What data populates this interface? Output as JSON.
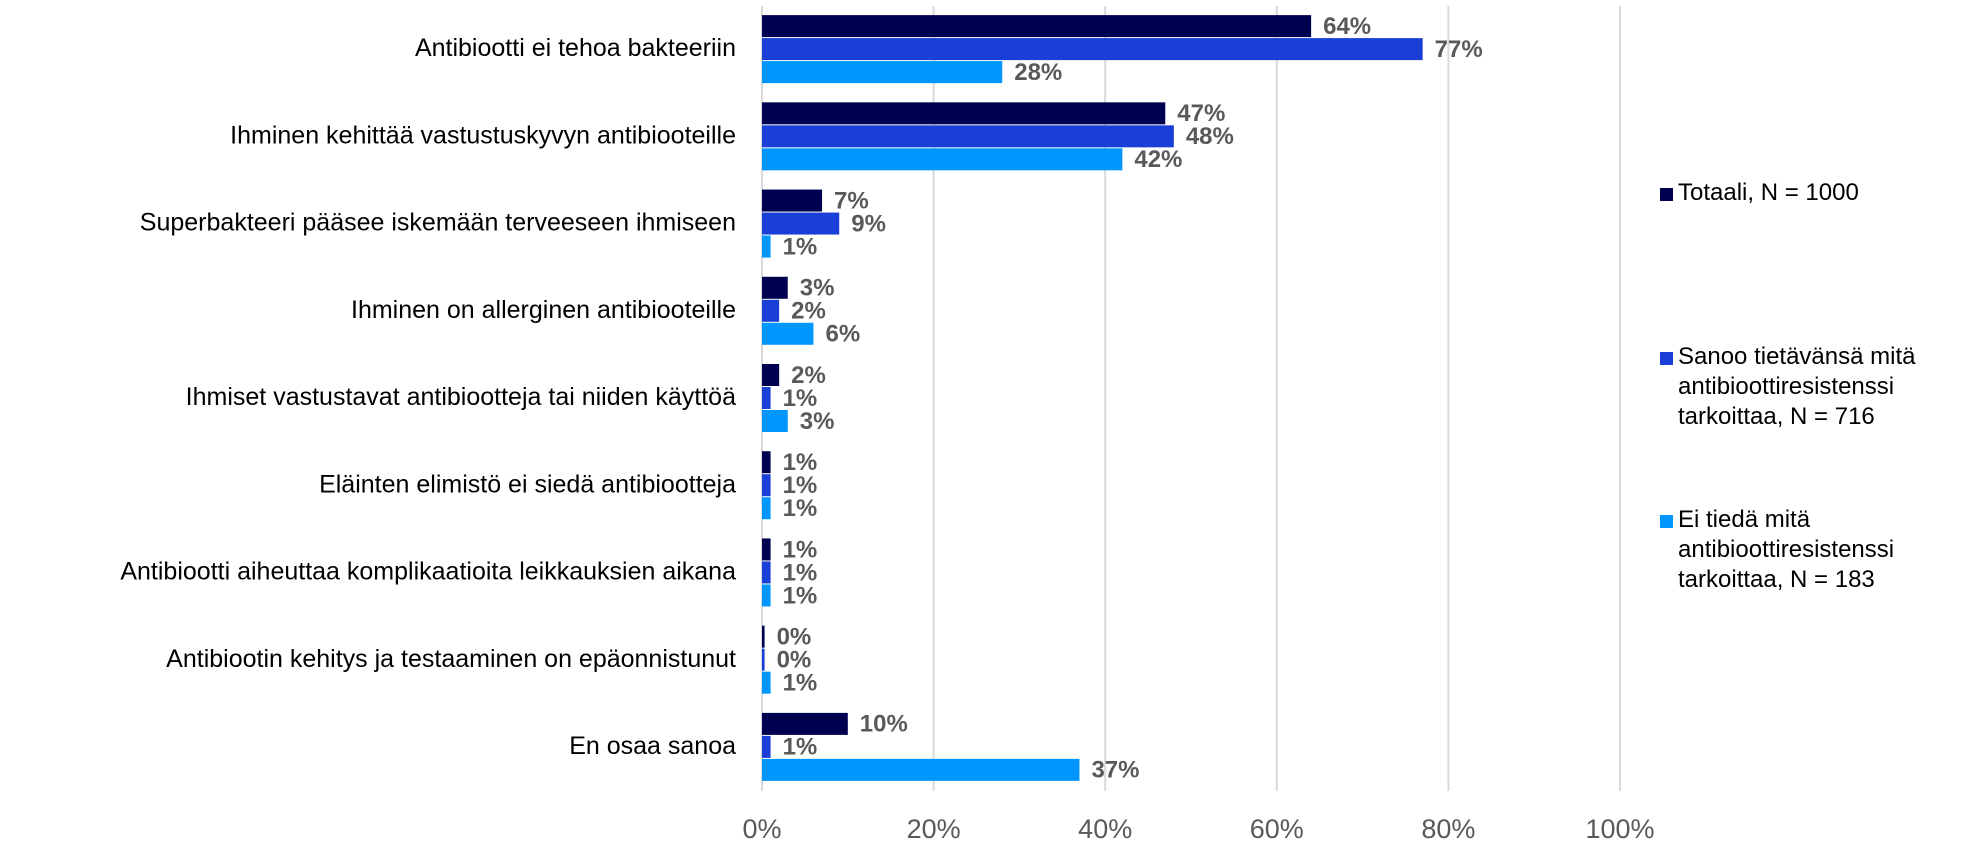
{
  "chart_data": {
    "type": "bar",
    "orientation": "horizontal",
    "categories": [
      "Antibiootti ei tehoa bakteeriin",
      "Ihminen kehittää vastustuskyvyn antibiooteille",
      "Superbakteeri pääsee iskemään terveeseen ihmiseen",
      "Ihminen on allerginen antibiooteille",
      "Ihmiset vastustavat antibiootteja tai niiden käyttöä",
      "Eläinten elimistö ei siedä antibiootteja",
      "Antibiootti aiheuttaa komplikaatioita leikkauksien aikana",
      "Antibiootin kehitys ja testaaminen on epäonnistunut",
      "En osaa sanoa"
    ],
    "series": [
      {
        "name": "Totaali, N = 1000",
        "color": "#000050",
        "values": [
          64,
          47,
          7,
          3,
          2,
          1,
          1,
          0.3,
          10
        ],
        "value_labels": [
          "64%",
          "47%",
          "7%",
          "3%",
          "2%",
          "1%",
          "1%",
          "0%",
          "10%"
        ]
      },
      {
        "name": "Sanoo tietävänsä mitä antibioottiresistenssi tarkoittaa, N = 716",
        "color": "#1a3fd6",
        "values": [
          77,
          48,
          9,
          2,
          1,
          1,
          1,
          0.3,
          1
        ],
        "value_labels": [
          "77%",
          "48%",
          "9%",
          "2%",
          "1%",
          "1%",
          "1%",
          "0%",
          "1%"
        ]
      },
      {
        "name": "Ei tiedä mitä antibioottiresistenssi tarkoittaa, N = 183",
        "color": "#0096ff",
        "values": [
          28,
          42,
          1,
          6,
          3,
          1,
          1,
          1,
          37
        ],
        "value_labels": [
          "28%",
          "42%",
          "1%",
          "6%",
          "3%",
          "1%",
          "1%",
          "1%",
          "37%"
        ]
      }
    ],
    "xlim": [
      0,
      100
    ],
    "xticks": [
      {
        "value": 0,
        "label": "0%"
      },
      {
        "value": 20,
        "label": "20%"
      },
      {
        "value": 40,
        "label": "40%"
      },
      {
        "value": 60,
        "label": "60%"
      },
      {
        "value": 80,
        "label": "80%"
      },
      {
        "value": 100,
        "label": "100%"
      }
    ],
    "grid": true,
    "legend": "right"
  }
}
